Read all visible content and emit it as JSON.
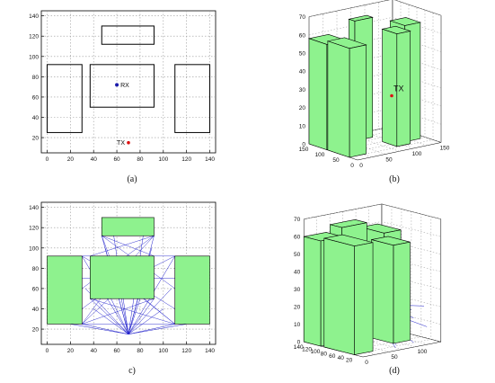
{
  "panel_a": {
    "caption": "(a)",
    "x_ticks": [
      "0",
      "20",
      "40",
      "60",
      "80",
      "100",
      "120",
      "140"
    ],
    "y_ticks": [
      "20",
      "40",
      "60",
      "80",
      "100",
      "120",
      "140"
    ],
    "buildings": [
      [
        0,
        25,
        30,
        92
      ],
      [
        110,
        25,
        140,
        92
      ],
      [
        37,
        50,
        92,
        92
      ],
      [
        47,
        112,
        92,
        130
      ]
    ],
    "rx": {
      "label": "RX",
      "x": 60,
      "y": 72
    },
    "tx": {
      "label": "TX",
      "x": 70,
      "y": 15
    }
  },
  "panel_b": {
    "caption": "(b)",
    "z_ticks": [
      "0",
      "10",
      "20",
      "30",
      "40",
      "50",
      "60",
      "70"
    ],
    "left_ticks": [
      "0",
      "50",
      "100",
      "150"
    ],
    "right_ticks": [
      "0",
      "50",
      "100",
      "150"
    ],
    "tx_label": "TX"
  },
  "panel_c": {
    "caption": "c)",
    "x_ticks": [
      "0",
      "20",
      "40",
      "60",
      "80",
      "100",
      "120",
      "140"
    ],
    "y_ticks": [
      "20",
      "40",
      "60",
      "80",
      "100",
      "120",
      "140"
    ],
    "buildings": [
      [
        0,
        25,
        30,
        92
      ],
      [
        110,
        25,
        140,
        92
      ],
      [
        37,
        50,
        92,
        92
      ],
      [
        47,
        112,
        92,
        130
      ]
    ]
  },
  "panel_d": {
    "caption": "(d)",
    "z_ticks": [
      "0",
      "10",
      "20",
      "30",
      "40",
      "50",
      "60",
      "70"
    ],
    "left_ticks": [
      "20",
      "40",
      "60",
      "80",
      "100",
      "120",
      "140"
    ],
    "right_ticks": [
      "0",
      "50",
      "100"
    ]
  },
  "colors": {
    "building": "#8ef28e",
    "rays": "#2222cc",
    "rx": "#1a1aaa",
    "tx": "#dd1111"
  }
}
